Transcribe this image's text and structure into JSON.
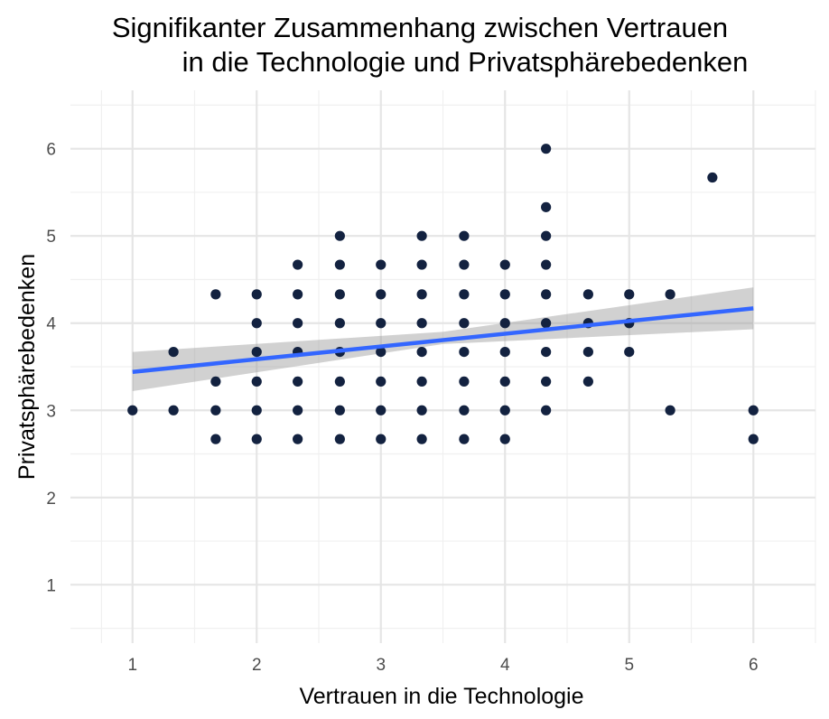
{
  "chart_data": {
    "type": "scatter",
    "title_lines": [
      "Signifikanter Zusammenhang zwischen Vertrauen",
      "in die Technologie und Privatsphärebedenken"
    ],
    "xlabel": "Vertrauen in die Technologie",
    "ylabel": "Privatsphärebedenken",
    "xlim": [
      0.5,
      6.5
    ],
    "ylim": [
      0.33,
      6.67
    ],
    "x_ticks": [
      1,
      2,
      3,
      4,
      5,
      6
    ],
    "y_ticks": [
      1,
      2,
      3,
      4,
      5,
      6
    ],
    "x_tick_labels": [
      "1",
      "2",
      "3",
      "4",
      "5",
      "6"
    ],
    "y_tick_labels": [
      "1",
      "2",
      "3",
      "4",
      "5",
      "6"
    ],
    "grid": true,
    "points": [
      [
        1.0,
        3.0
      ],
      [
        1.33,
        3.0
      ],
      [
        1.33,
        3.67
      ],
      [
        1.67,
        2.67
      ],
      [
        1.67,
        3.0
      ],
      [
        1.67,
        3.33
      ],
      [
        1.67,
        4.33
      ],
      [
        2.0,
        2.67
      ],
      [
        2.0,
        3.0
      ],
      [
        2.0,
        3.33
      ],
      [
        2.0,
        3.67
      ],
      [
        2.0,
        4.0
      ],
      [
        2.0,
        4.33
      ],
      [
        2.33,
        2.67
      ],
      [
        2.33,
        3.0
      ],
      [
        2.33,
        3.33
      ],
      [
        2.33,
        3.67
      ],
      [
        2.33,
        4.0
      ],
      [
        2.33,
        4.33
      ],
      [
        2.33,
        4.67
      ],
      [
        2.67,
        2.67
      ],
      [
        2.67,
        3.0
      ],
      [
        2.67,
        3.33
      ],
      [
        2.67,
        3.67
      ],
      [
        2.67,
        4.0
      ],
      [
        2.67,
        4.33
      ],
      [
        2.67,
        4.67
      ],
      [
        2.67,
        5.0
      ],
      [
        3.0,
        2.67
      ],
      [
        3.0,
        3.0
      ],
      [
        3.0,
        3.33
      ],
      [
        3.0,
        3.67
      ],
      [
        3.0,
        4.0
      ],
      [
        3.0,
        4.33
      ],
      [
        3.0,
        4.67
      ],
      [
        3.33,
        2.67
      ],
      [
        3.33,
        3.0
      ],
      [
        3.33,
        3.33
      ],
      [
        3.33,
        3.67
      ],
      [
        3.33,
        4.0
      ],
      [
        3.33,
        4.33
      ],
      [
        3.33,
        4.67
      ],
      [
        3.33,
        5.0
      ],
      [
        3.67,
        2.67
      ],
      [
        3.67,
        3.0
      ],
      [
        3.67,
        3.33
      ],
      [
        3.67,
        3.67
      ],
      [
        3.67,
        4.0
      ],
      [
        3.67,
        4.33
      ],
      [
        3.67,
        4.67
      ],
      [
        3.67,
        5.0
      ],
      [
        4.0,
        2.67
      ],
      [
        4.0,
        3.0
      ],
      [
        4.0,
        3.33
      ],
      [
        4.0,
        3.67
      ],
      [
        4.0,
        4.0
      ],
      [
        4.0,
        4.33
      ],
      [
        4.0,
        4.67
      ],
      [
        4.33,
        3.0
      ],
      [
        4.33,
        3.33
      ],
      [
        4.33,
        3.67
      ],
      [
        4.33,
        4.0
      ],
      [
        4.33,
        4.33
      ],
      [
        4.33,
        4.67
      ],
      [
        4.33,
        5.0
      ],
      [
        4.33,
        5.33
      ],
      [
        4.33,
        6.0
      ],
      [
        4.67,
        3.33
      ],
      [
        4.67,
        3.67
      ],
      [
        4.67,
        4.0
      ],
      [
        4.67,
        4.33
      ],
      [
        5.0,
        3.67
      ],
      [
        5.0,
        4.0
      ],
      [
        5.0,
        4.33
      ],
      [
        5.33,
        3.0
      ],
      [
        5.33,
        4.33
      ],
      [
        5.67,
        5.67
      ],
      [
        6.0,
        2.67
      ],
      [
        6.0,
        3.0
      ]
    ],
    "regression": {
      "x_start": 1.0,
      "x_end": 6.0,
      "y_start": 3.44,
      "y_end": 4.17,
      "ci_lower_start": 3.22,
      "ci_upper_start": 3.67,
      "ci_lower_mid": 3.76,
      "ci_upper_mid": 3.9,
      "ci_lower_end": 3.93,
      "ci_upper_end": 4.41
    },
    "colors": {
      "points": "#132240",
      "line": "#3366ff",
      "ribbon": "#999999",
      "grid_major": "#e5e5e5",
      "grid_minor": "#f0f0f0",
      "tick_text": "#4d4d4d"
    }
  }
}
